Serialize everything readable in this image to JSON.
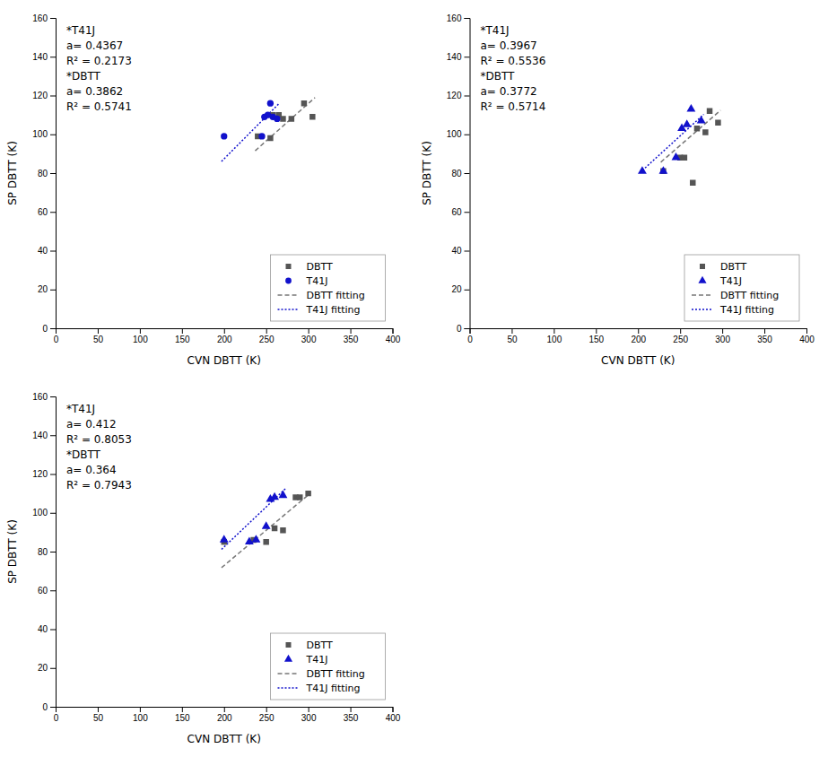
{
  "chart_data": [
    {
      "type": "scatter",
      "xlabel": "CVN DBTT (K)",
      "ylabel": "SP DBTT (K)",
      "xlim": [
        0,
        400
      ],
      "ylim": [
        0,
        160
      ],
      "xticks": [
        0,
        50,
        100,
        150,
        200,
        250,
        300,
        350,
        400
      ],
      "yticks": [
        0,
        20,
        40,
        60,
        80,
        100,
        120,
        140,
        160
      ],
      "grid": false,
      "legend": "lower right",
      "series": [
        {
          "name": "DBTT",
          "color": "#555555",
          "marker": "square",
          "x": [
            240,
            255,
            258,
            265,
            270,
            280,
            295,
            305
          ],
          "values": [
            99,
            98,
            110,
            110,
            108,
            108,
            116,
            109
          ],
          "fit": {
            "name": "DBTT fitting",
            "slope": 0.3862,
            "color": "#777777",
            "line_style": "dashed"
          }
        },
        {
          "name": "T41J",
          "color": "#1111cc",
          "marker": "circle",
          "x": [
            200,
            245,
            248,
            252,
            255,
            258,
            263
          ],
          "values": [
            99,
            99,
            109,
            110,
            116,
            109,
            108
          ],
          "fit": {
            "name": "T41J fitting",
            "slope": 0.4367,
            "color": "#1111cc",
            "line_style": "dotted"
          }
        }
      ],
      "annotations": [
        "*T41J",
        "a= 0.4367",
        "R² = 0.2173",
        "*DBTT",
        "a= 0.3862",
        "R² = 0.5741"
      ]
    },
    {
      "type": "scatter",
      "xlabel": "CVN DBTT (K)",
      "ylabel": "SP DBTT (K)",
      "xlim": [
        0,
        400
      ],
      "ylim": [
        0,
        160
      ],
      "xticks": [
        0,
        50,
        100,
        150,
        200,
        250,
        300,
        350,
        400
      ],
      "yticks": [
        0,
        20,
        40,
        60,
        80,
        100,
        120,
        140,
        160
      ],
      "grid": false,
      "legend": "lower right",
      "series": [
        {
          "name": "DBTT",
          "color": "#555555",
          "marker": "square",
          "x": [
            230,
            250,
            255,
            265,
            270,
            280,
            285,
            295
          ],
          "values": [
            81,
            88,
            88,
            75,
            103,
            101,
            112,
            106
          ],
          "fit": {
            "name": "DBTT fitting",
            "slope": 0.3772,
            "color": "#777777",
            "line_style": "dashed"
          }
        },
        {
          "name": "T41J",
          "color": "#1111cc",
          "marker": "triangle",
          "x": [
            205,
            230,
            245,
            252,
            258,
            263,
            275
          ],
          "values": [
            81,
            81,
            88,
            103,
            105,
            113,
            107
          ],
          "fit": {
            "name": "T41J fitting",
            "slope": 0.3967,
            "color": "#1111cc",
            "line_style": "dotted"
          }
        }
      ],
      "annotations": [
        "*T41J",
        "a= 0.3967",
        "R² = 0.5536",
        "*DBTT",
        "a= 0.3772",
        "R² = 0.5714"
      ]
    },
    {
      "type": "scatter",
      "xlabel": "CVN DBTT (K)",
      "ylabel": "SP DBTT (K)",
      "xlim": [
        0,
        400
      ],
      "ylim": [
        0,
        160
      ],
      "xticks": [
        0,
        50,
        100,
        150,
        200,
        250,
        300,
        350,
        400
      ],
      "yticks": [
        0,
        20,
        40,
        60,
        80,
        100,
        120,
        140,
        160
      ],
      "grid": false,
      "legend": "lower right",
      "series": [
        {
          "name": "DBTT",
          "color": "#555555",
          "marker": "square",
          "x": [
            200,
            235,
            250,
            260,
            270,
            285,
            290,
            300
          ],
          "values": [
            85,
            86,
            85,
            92,
            91,
            108,
            108,
            110
          ],
          "fit": {
            "name": "DBTT fitting",
            "slope": 0.364,
            "color": "#777777",
            "line_style": "dashed"
          }
        },
        {
          "name": "T41J",
          "color": "#1111cc",
          "marker": "triangle",
          "x": [
            200,
            230,
            238,
            250,
            255,
            260,
            270
          ],
          "values": [
            86,
            85,
            86,
            93,
            107,
            108,
            109
          ],
          "fit": {
            "name": "T41J fitting",
            "slope": 0.412,
            "color": "#1111cc",
            "line_style": "dotted"
          }
        }
      ],
      "annotations": [
        "*T41J",
        "a= 0.412",
        "R² = 0.8053",
        "*DBTT",
        "a= 0.364",
        "R² = 0.7943"
      ]
    }
  ]
}
